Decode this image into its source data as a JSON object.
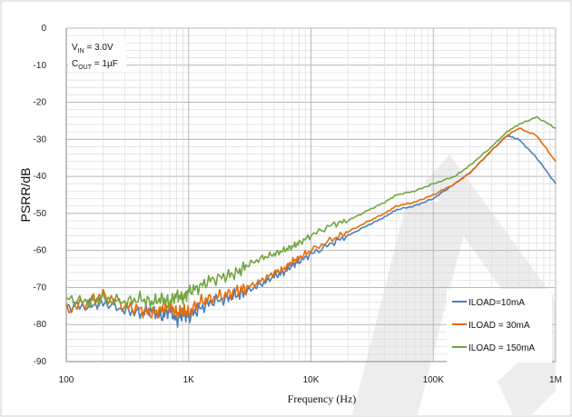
{
  "chart_data": {
    "type": "line",
    "title": "",
    "xlabel": "Frequency (Hz)",
    "ylabel": "PSRR/dB",
    "xscale": "log",
    "xlim": [
      100,
      1000000
    ],
    "ylim": [
      -90,
      0
    ],
    "x_ticks": [
      100,
      1000,
      10000,
      100000,
      1000000
    ],
    "x_tick_labels": [
      "100",
      "1K",
      "10K",
      "100K",
      "1M"
    ],
    "y_ticks": [
      0,
      -10,
      -20,
      -30,
      -40,
      -50,
      -60,
      -70,
      -80,
      -90
    ],
    "y_tick_labels": [
      "0",
      "-10",
      "-20",
      "-30",
      "-40",
      "-50",
      "-60",
      "-70",
      "-80",
      "-90"
    ],
    "grid": true,
    "legend_position": "bottom-right",
    "annotation": {
      "vin_main": "V",
      "vin_sub": "IN",
      "vin_rest": " = 3.0V",
      "cout_main": "C",
      "cout_sub": "OUT",
      "cout_rest": " = 1µF"
    },
    "series": [
      {
        "name": "ILOAD=10mA",
        "color": "#4a7ebb",
        "x": [
          100,
          150,
          200,
          300,
          400,
          500,
          600,
          700,
          800,
          900,
          1000,
          1200,
          1500,
          2000,
          2500,
          3000,
          4000,
          5000,
          6000,
          7000,
          8000,
          10000,
          15000,
          20000,
          30000,
          40000,
          50000,
          70000,
          100000,
          150000,
          200000,
          300000,
          400000,
          500000,
          700000,
          1000000
        ],
        "y": [
          -75,
          -75,
          -74,
          -76,
          -77,
          -76,
          -78,
          -76,
          -79,
          -77,
          -78,
          -76,
          -74,
          -73,
          -72,
          -71,
          -69,
          -67,
          -66,
          -64,
          -63,
          -61,
          -58,
          -56,
          -53,
          -51,
          -49,
          -48,
          -46,
          -42,
          -39,
          -33,
          -29,
          -30,
          -35,
          -42
        ]
      },
      {
        "name": "ILOAD = 30mA",
        "color": "#e46c0a",
        "x": [
          100,
          150,
          200,
          300,
          400,
          500,
          600,
          700,
          800,
          900,
          1000,
          1200,
          1500,
          2000,
          2500,
          3000,
          4000,
          5000,
          6000,
          7000,
          8000,
          10000,
          15000,
          20000,
          30000,
          40000,
          50000,
          70000,
          100000,
          150000,
          200000,
          300000,
          400000,
          500000,
          700000,
          1000000
        ],
        "y": [
          -76,
          -74,
          -72,
          -75,
          -76,
          -77,
          -76,
          -75,
          -77,
          -76,
          -77,
          -74,
          -73,
          -72,
          -71,
          -70,
          -68,
          -66,
          -65,
          -63,
          -62,
          -60,
          -57,
          -55,
          -52,
          -50,
          -48,
          -47,
          -45,
          -42,
          -39,
          -33,
          -29,
          -27,
          -29,
          -36
        ]
      },
      {
        "name": "ILOAD = 150mA",
        "color": "#71a540",
        "x": [
          100,
          150,
          200,
          300,
          400,
          500,
          600,
          700,
          800,
          900,
          1000,
          1200,
          1500,
          2000,
          2500,
          3000,
          4000,
          5000,
          6000,
          7000,
          8000,
          10000,
          15000,
          20000,
          30000,
          40000,
          50000,
          70000,
          100000,
          150000,
          200000,
          300000,
          400000,
          500000,
          700000,
          1000000
        ],
        "y": [
          -73,
          -74,
          -73,
          -74,
          -73,
          -74,
          -73,
          -74,
          -72,
          -73,
          -71,
          -70,
          -68,
          -67,
          -66,
          -64,
          -62,
          -61,
          -60,
          -59,
          -58,
          -56,
          -53,
          -52,
          -49,
          -47,
          -45,
          -44,
          -42,
          -40,
          -37,
          -32,
          -28,
          -26,
          -24,
          -27
        ]
      }
    ]
  }
}
